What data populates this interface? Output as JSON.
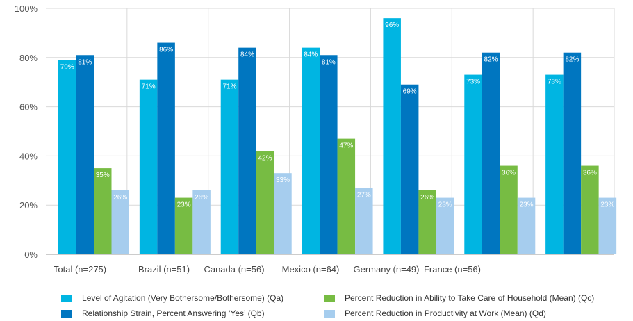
{
  "chart_data": {
    "type": "bar",
    "categories": [
      "Total (n=275)",
      "Brazil (n=51)",
      "Canada (n=56)",
      "Mexico (n=64)",
      "Germany (n=49)",
      "France (n=56)",
      ""
    ],
    "category_label_order_note": "",
    "series": [
      {
        "name": "Level of Agitation (Very Bothersome/Bothersome) (Qa)",
        "color": "#00b5e2",
        "values": [
          79,
          71,
          71,
          84,
          96,
          73,
          73
        ]
      },
      {
        "name": "Relationship Strain, Percent Answering ‘Yes’ (Qb)",
        "color": "#0076c0",
        "values": [
          81,
          86,
          84,
          81,
          69,
          82,
          82
        ]
      },
      {
        "name": "Percent Reduction in Ability to Take Care of Household (Mean) (Qc)",
        "color": "#77bc43",
        "values": [
          35,
          23,
          42,
          47,
          26,
          36,
          36
        ]
      },
      {
        "name": "Percent Reduction in Productivity at Work (Mean) (Qd)",
        "color": "#a6cdee",
        "values": [
          26,
          26,
          33,
          27,
          23,
          23,
          23
        ]
      }
    ],
    "ylim": [
      0,
      100
    ],
    "yticks": [
      "0%",
      "20%",
      "40%",
      "60%",
      "80%",
      "100%"
    ],
    "grid": true,
    "legend_position": "bottom"
  }
}
